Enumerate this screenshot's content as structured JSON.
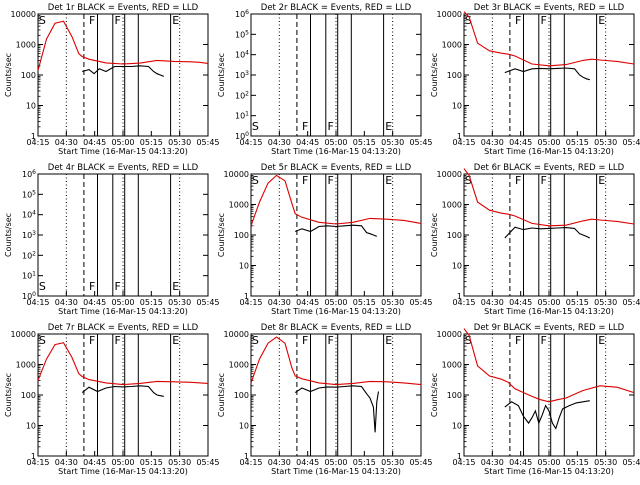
{
  "colors": {
    "events": "#000000",
    "lld": "#dd0000",
    "background": "#ffffff"
  },
  "x_tick_labels": [
    "04:15",
    "04:30",
    "04:45",
    "05:00",
    "05:15",
    "05:30",
    "05:45"
  ],
  "x_title": "Start Time (16-Mar-15 04:13:20)",
  "y_title": "Counts/sec",
  "chart_data": [
    {
      "type": "line",
      "title": "Det 1r  BLACK = Events, RED = LLD",
      "scale": "log",
      "y_tick_labels": [
        "1",
        "10",
        "100",
        "1000",
        "10000"
      ],
      "ylim": [
        1,
        10000
      ],
      "xlim_min": [
        0,
        100
      ],
      "flag_labels": {
        "s": "S",
        "f1": "F",
        "f2": "F",
        "e": "E"
      },
      "series": [
        {
          "name": "LLD",
          "x": [
            0,
            5,
            10,
            15,
            20,
            24,
            26,
            30,
            40,
            50,
            60,
            70,
            80,
            90,
            95,
            100
          ],
          "values": [
            140,
            1500,
            5000,
            5800,
            1800,
            500,
            400,
            330,
            250,
            230,
            245,
            300,
            280,
            270,
            260,
            240
          ]
        },
        {
          "name": "Events",
          "x": [
            26,
            30,
            33,
            36,
            40,
            45,
            50,
            55,
            60,
            65,
            68,
            70,
            72,
            74
          ],
          "values": [
            130,
            150,
            110,
            160,
            130,
            190,
            190,
            190,
            200,
            190,
            130,
            110,
            100,
            90
          ]
        }
      ]
    },
    {
      "type": "line",
      "title": "Det 2r  BLACK = Events, RED = LLD",
      "scale": "exp",
      "y_tick_labels": [
        "10^0",
        "10^1",
        "10^2",
        "10^3",
        "10^4",
        "10^5",
        "10^6"
      ],
      "ylim": [
        1,
        1000000
      ],
      "xlim_min": [
        0,
        100
      ],
      "flag_labels": {
        "s": "S",
        "f1": "F",
        "f2": "F",
        "e": "E"
      },
      "series": []
    },
    {
      "type": "line",
      "title": "Det 3r  BLACK = Events, RED = LLD",
      "scale": "log",
      "y_tick_labels": [
        "1",
        "10",
        "100",
        "1000",
        "10000"
      ],
      "ylim": [
        1,
        10000
      ],
      "xlim_min": [
        0,
        100
      ],
      "flag_labels": {
        "s": "S",
        "f1": "F",
        "f2": "F",
        "e": "E"
      },
      "series": [
        {
          "name": "LLD",
          "x": [
            0,
            3,
            8,
            15,
            22,
            26,
            30,
            40,
            50,
            60,
            70,
            75,
            80,
            90,
            100
          ],
          "values": [
            12000,
            8000,
            1100,
            620,
            520,
            480,
            420,
            230,
            200,
            220,
            300,
            330,
            310,
            280,
            230
          ]
        },
        {
          "name": "Events",
          "x": [
            24,
            30,
            35,
            40,
            45,
            50,
            55,
            60,
            65,
            68,
            70,
            72,
            74
          ],
          "values": [
            120,
            160,
            130,
            160,
            165,
            160,
            165,
            170,
            160,
            100,
            85,
            75,
            70
          ]
        }
      ]
    },
    {
      "type": "line",
      "title": "Det 4r  BLACK = Events, RED = LLD",
      "scale": "exp",
      "y_tick_labels": [
        "10^0",
        "10^1",
        "10^2",
        "10^3",
        "10^4",
        "10^5",
        "10^6"
      ],
      "ylim": [
        1,
        1000000
      ],
      "xlim_min": [
        0,
        100
      ],
      "flag_labels": {
        "s": "S",
        "f1": "F",
        "f2": "F",
        "e": "E"
      },
      "series": []
    },
    {
      "type": "line",
      "title": "Det 5r  BLACK = Events, RED = LLD",
      "scale": "log",
      "y_tick_labels": [
        "1",
        "10",
        "100",
        "1000",
        "10000"
      ],
      "ylim": [
        1,
        10000
      ],
      "xlim_min": [
        0,
        100
      ],
      "flag_labels": {
        "s": "S",
        "f1": "F",
        "f2": "F",
        "e": "E"
      },
      "series": [
        {
          "name": "LLD",
          "x": [
            0,
            5,
            10,
            15,
            20,
            24,
            26,
            30,
            40,
            50,
            60,
            70,
            80,
            90,
            100
          ],
          "values": [
            200,
            1200,
            5000,
            9000,
            6000,
            1100,
            500,
            380,
            260,
            230,
            260,
            350,
            330,
            300,
            240
          ]
        },
        {
          "name": "Events",
          "x": [
            26,
            30,
            35,
            40,
            45,
            50,
            55,
            60,
            65,
            68,
            70,
            72,
            74
          ],
          "values": [
            130,
            160,
            130,
            190,
            200,
            190,
            200,
            210,
            200,
            120,
            110,
            100,
            90
          ]
        }
      ]
    },
    {
      "type": "line",
      "title": "Det 6r  BLACK = Events, RED = LLD",
      "scale": "log",
      "y_tick_labels": [
        "1",
        "10",
        "100",
        "1000",
        "10000"
      ],
      "ylim": [
        1,
        10000
      ],
      "xlim_min": [
        0,
        100
      ],
      "flag_labels": {
        "s": "S",
        "f1": "F",
        "f2": "F",
        "e": "E"
      },
      "series": [
        {
          "name": "LLD",
          "x": [
            0,
            3,
            8,
            15,
            22,
            26,
            30,
            40,
            50,
            60,
            70,
            75,
            80,
            90,
            100
          ],
          "values": [
            15000,
            9000,
            1200,
            650,
            520,
            480,
            420,
            240,
            200,
            210,
            290,
            330,
            310,
            280,
            230
          ]
        },
        {
          "name": "Events",
          "x": [
            24,
            30,
            35,
            40,
            45,
            50,
            55,
            60,
            65,
            68,
            70,
            72,
            74
          ],
          "values": [
            80,
            180,
            150,
            170,
            160,
            165,
            170,
            175,
            165,
            110,
            100,
            90,
            80
          ]
        }
      ]
    },
    {
      "type": "line",
      "title": "Det 7r  BLACK = Events, RED = LLD",
      "scale": "log",
      "y_tick_labels": [
        "1",
        "10",
        "100",
        "1000",
        "10000"
      ],
      "ylim": [
        1,
        10000
      ],
      "xlim_min": [
        0,
        100
      ],
      "flag_labels": {
        "s": "S",
        "f1": "F",
        "f2": "F",
        "e": "E"
      },
      "series": [
        {
          "name": "LLD",
          "x": [
            0,
            5,
            10,
            15,
            20,
            24,
            26,
            30,
            40,
            50,
            60,
            70,
            80,
            90,
            100
          ],
          "values": [
            300,
            1500,
            4500,
            5200,
            1700,
            500,
            400,
            320,
            250,
            220,
            240,
            280,
            270,
            260,
            240
          ]
        },
        {
          "name": "Events",
          "x": [
            26,
            30,
            35,
            40,
            45,
            50,
            55,
            60,
            65,
            68,
            70,
            72,
            74
          ],
          "values": [
            120,
            180,
            130,
            170,
            190,
            185,
            190,
            200,
            190,
            120,
            100,
            95,
            90
          ]
        }
      ]
    },
    {
      "type": "line",
      "title": "Det 8r  BLACK = Events, RED = LLD",
      "scale": "log",
      "y_tick_labels": [
        "1",
        "10",
        "100",
        "1000",
        "10000"
      ],
      "ylim": [
        1,
        10000
      ],
      "xlim_min": [
        0,
        100
      ],
      "flag_labels": {
        "s": "S",
        "f1": "F",
        "f2": "F",
        "e": "E"
      },
      "series": [
        {
          "name": "LLD",
          "x": [
            0,
            5,
            10,
            15,
            20,
            24,
            26,
            30,
            40,
            50,
            60,
            70,
            80,
            90,
            100
          ],
          "values": [
            250,
            1500,
            5000,
            8000,
            5000,
            800,
            420,
            340,
            250,
            220,
            240,
            280,
            270,
            250,
            220
          ]
        },
        {
          "name": "Events",
          "x": [
            26,
            30,
            35,
            40,
            45,
            50,
            55,
            60,
            65,
            68,
            70,
            72,
            73,
            74,
            75
          ],
          "values": [
            120,
            170,
            130,
            170,
            185,
            180,
            190,
            200,
            190,
            110,
            80,
            40,
            6,
            60,
            130
          ]
        }
      ]
    },
    {
      "type": "line",
      "title": "Det 9r  BLACK = Events, RED = LLD",
      "scale": "log",
      "y_tick_labels": [
        "1",
        "10",
        "100",
        "1000",
        "10000"
      ],
      "ylim": [
        1,
        10000
      ],
      "xlim_min": [
        0,
        100
      ],
      "flag_labels": {
        "s": "S",
        "f1": "F",
        "f2": "F",
        "e": "E"
      },
      "series": [
        {
          "name": "LLD",
          "x": [
            0,
            3,
            8,
            15,
            22,
            26,
            30,
            35,
            40,
            45,
            50,
            55,
            60,
            70,
            80,
            90,
            100
          ],
          "values": [
            15000,
            9000,
            900,
            420,
            330,
            260,
            160,
            120,
            90,
            70,
            60,
            70,
            80,
            140,
            200,
            180,
            120
          ]
        },
        {
          "name": "Events",
          "x": [
            24,
            28,
            32,
            35,
            38,
            40,
            42,
            44,
            46,
            48,
            50,
            52,
            54,
            56,
            58,
            62,
            66,
            70,
            74
          ],
          "values": [
            40,
            60,
            45,
            20,
            12,
            18,
            30,
            12,
            22,
            45,
            30,
            12,
            8,
            18,
            35,
            45,
            55,
            60,
            65
          ]
        }
      ]
    }
  ]
}
